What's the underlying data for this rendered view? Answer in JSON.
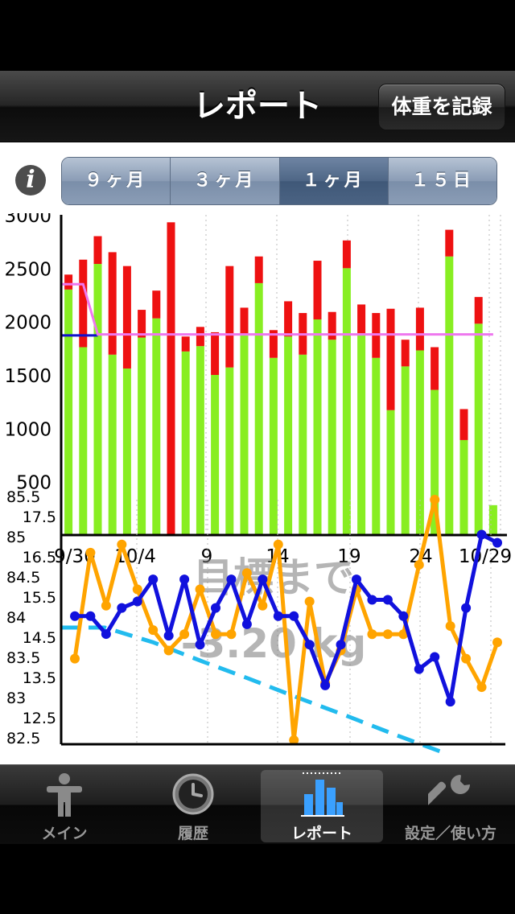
{
  "nav": {
    "title": "レポート",
    "record_button": "体重を記録"
  },
  "segments": [
    {
      "label": "９ヶ月",
      "active": false
    },
    {
      "label": "３ヶ月",
      "active": false
    },
    {
      "label": "１ヶ月",
      "active": true
    },
    {
      "label": "１５日",
      "active": false
    }
  ],
  "info_icon": "info-icon",
  "chart_data": [
    {
      "type": "bar",
      "description_kind": "stacked calorie bars",
      "y_ticks": [
        "3000",
        "2500",
        "2000",
        "1500",
        "1000",
        "500"
      ],
      "ylim": [
        0,
        3000
      ],
      "x_tick_labels": [
        "9/30",
        "10/4",
        "9",
        "14",
        "19",
        "24",
        "10/29"
      ],
      "days": 30,
      "series": [
        {
          "name": "",
          "color": "#88ee22",
          "values": [
            2300,
            1760,
            2540,
            1690,
            1560,
            1850,
            2030,
            0,
            1720,
            1770,
            1500,
            1570,
            1880,
            2360,
            1660,
            1860,
            1690,
            2020,
            1830,
            2500,
            1890,
            1660,
            1170,
            1580,
            1730,
            1360,
            2610,
            890,
            1980,
            280
          ]
        },
        {
          "name": "",
          "color": "#ee1111",
          "values": [
            140,
            820,
            260,
            960,
            960,
            260,
            260,
            2930,
            140,
            180,
            400,
            950,
            250,
            250,
            260,
            330,
            390,
            550,
            260,
            260,
            270,
            420,
            950,
            250,
            400,
            400,
            250,
            290,
            250,
            0
          ]
        }
      ],
      "target_line": {
        "color": "#1111cc",
        "value": 1870
      },
      "pink_line": {
        "color": "#ee77ee",
        "values": [
          2350,
          2350,
          1880,
          1880,
          1880,
          1880,
          1880,
          1880,
          1880,
          1880,
          1880,
          1880,
          1880,
          1880,
          1880,
          1880,
          1880,
          1880,
          1880,
          1880,
          1880,
          1880,
          1880,
          1880,
          1880,
          1880,
          1880,
          1880,
          1880,
          1880
        ]
      }
    },
    {
      "type": "line",
      "left_axis_ticks": [
        "85.5",
        "85",
        "84.5",
        "84",
        "83.5",
        "83",
        "82.5"
      ],
      "right_axis_ticks": [
        "17.5",
        "16.5",
        "15.5",
        "14.5",
        "13.5",
        "12.5"
      ],
      "ylim_weight": [
        82.5,
        85.5
      ],
      "ylim_fat": [
        11.8,
        17.8
      ],
      "overlay_text_1": "目標まで",
      "overlay_text_2": "-3.20 kg",
      "series": [
        {
          "name": "",
          "color": "#1111dd",
          "values": [
            84.17,
            84.17,
            83.95,
            84.27,
            84.35,
            84.62,
            83.93,
            84.62,
            83.82,
            84.27,
            84.62,
            84.07,
            84.62,
            84.17,
            84.17,
            83.82,
            83.32,
            83.82,
            84.62,
            84.37,
            84.37,
            84.17,
            83.52,
            83.67,
            83.12,
            84.27,
            85.17,
            85.07
          ]
        },
        {
          "name": "",
          "color": "#ffa400",
          "values": [
            13.9,
            16.5,
            15.2,
            16.7,
            15.6,
            14.6,
            14.1,
            14.5,
            15.6,
            14.5,
            14.5,
            16.0,
            15.2,
            16.7,
            11.9,
            15.3,
            13.3,
            14.1,
            15.6,
            14.5,
            14.5,
            14.5,
            16.2,
            17.8,
            14.7,
            13.9,
            13.2,
            14.3
          ]
        },
        {
          "name": "",
          "color": "#22bbee",
          "dashed": true,
          "values": [
            84.03,
            84.03,
            83.85,
            83.62,
            83.4,
            83.17,
            82.95,
            82.72,
            82.5
          ]
        }
      ]
    }
  ],
  "tabs": [
    {
      "label": "メイン",
      "icon": "person-icon",
      "active": false
    },
    {
      "label": "履歴",
      "icon": "clock-icon",
      "active": false
    },
    {
      "label": "レポート",
      "icon": "bar-chart-icon",
      "active": true
    },
    {
      "label": "設定／使い方",
      "icon": "wrench-icon",
      "active": false
    }
  ]
}
